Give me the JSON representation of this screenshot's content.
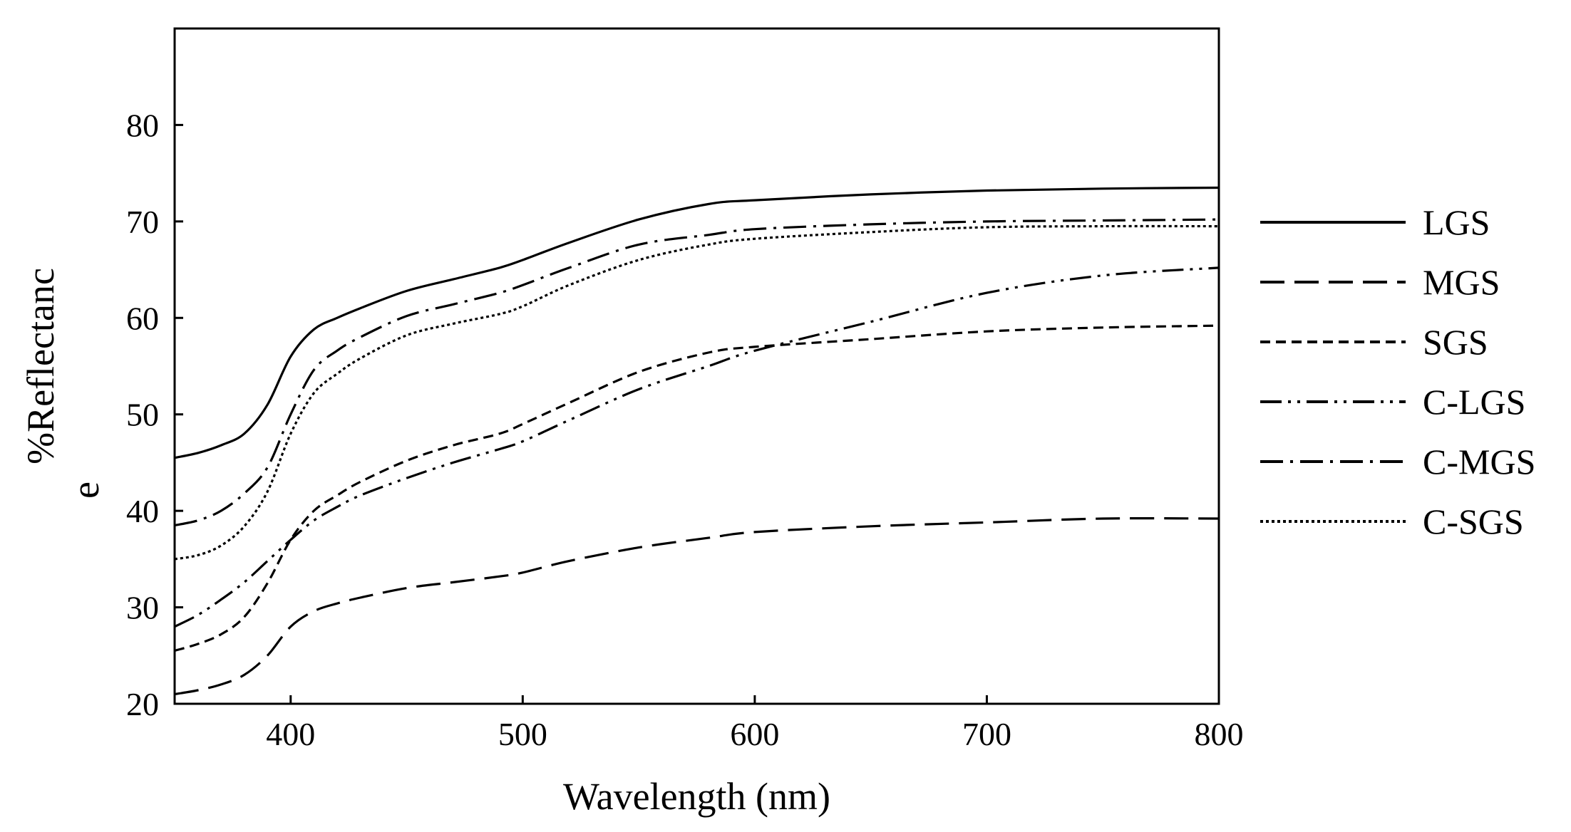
{
  "chart_data": {
    "type": "line",
    "title": "",
    "xlabel": "Wavelength (nm)",
    "ylabel_line1": "%Reflectanc",
    "ylabel_line2": "e",
    "xlim": [
      350,
      800
    ],
    "ylim": [
      20,
      90
    ],
    "x_ticks": [
      400,
      500,
      600,
      700,
      800
    ],
    "x_tick_labels": [
      "400",
      "500",
      "600",
      "700",
      "800"
    ],
    "y_ticks": [
      20,
      30,
      40,
      50,
      60,
      70,
      80
    ],
    "y_tick_labels": [
      "20",
      "30",
      "40",
      "50",
      "60",
      "70",
      "80"
    ],
    "legend_position": "right",
    "x": [
      350,
      360,
      370,
      380,
      390,
      400,
      410,
      420,
      430,
      450,
      470,
      490,
      500,
      520,
      550,
      580,
      600,
      650,
      700,
      750,
      800
    ],
    "series": [
      {
        "name": "LGS",
        "dash": "solid",
        "values": [
          45.5,
          46.0,
          46.8,
          48.0,
          51.0,
          56.0,
          58.8,
          60.0,
          61.0,
          62.8,
          64.0,
          65.2,
          66.0,
          67.8,
          70.2,
          71.8,
          72.2,
          72.8,
          73.2,
          73.4,
          73.5
        ]
      },
      {
        "name": "MGS",
        "dash": "long-dash",
        "values": [
          21.0,
          21.4,
          22.0,
          23.0,
          25.0,
          28.0,
          29.6,
          30.4,
          31.0,
          32.0,
          32.6,
          33.2,
          33.6,
          34.8,
          36.2,
          37.2,
          37.8,
          38.4,
          38.8,
          39.2,
          39.2
        ]
      },
      {
        "name": "SGS",
        "dash": "short-dash",
        "values": [
          25.5,
          26.2,
          27.2,
          29.0,
          32.5,
          37.0,
          40.0,
          41.6,
          43.0,
          45.2,
          46.8,
          48.0,
          49.0,
          51.2,
          54.4,
          56.4,
          57.0,
          57.8,
          58.6,
          59.0,
          59.2
        ]
      },
      {
        "name": "C-LGS",
        "dash": "dash-dot-dot",
        "values": [
          28.0,
          29.2,
          30.8,
          32.6,
          34.8,
          37.0,
          39.0,
          40.4,
          41.6,
          43.4,
          45.0,
          46.4,
          47.2,
          49.4,
          52.6,
          55.0,
          56.6,
          59.6,
          62.6,
          64.4,
          65.2
        ]
      },
      {
        "name": "C-MGS",
        "dash": "dash-dot",
        "values": [
          38.5,
          39.0,
          40.0,
          41.8,
          44.5,
          50.0,
          54.6,
          56.6,
          58.0,
          60.2,
          61.4,
          62.6,
          63.4,
          65.2,
          67.6,
          68.6,
          69.2,
          69.7,
          70.0,
          70.1,
          70.2
        ]
      },
      {
        "name": "C-SGS",
        "dash": "dotted",
        "values": [
          35.0,
          35.4,
          36.4,
          38.4,
          42.0,
          48.0,
          52.2,
          54.2,
          55.8,
          58.2,
          59.4,
          60.4,
          61.2,
          63.4,
          66.0,
          67.6,
          68.2,
          68.9,
          69.4,
          69.5,
          69.5
        ]
      }
    ]
  }
}
